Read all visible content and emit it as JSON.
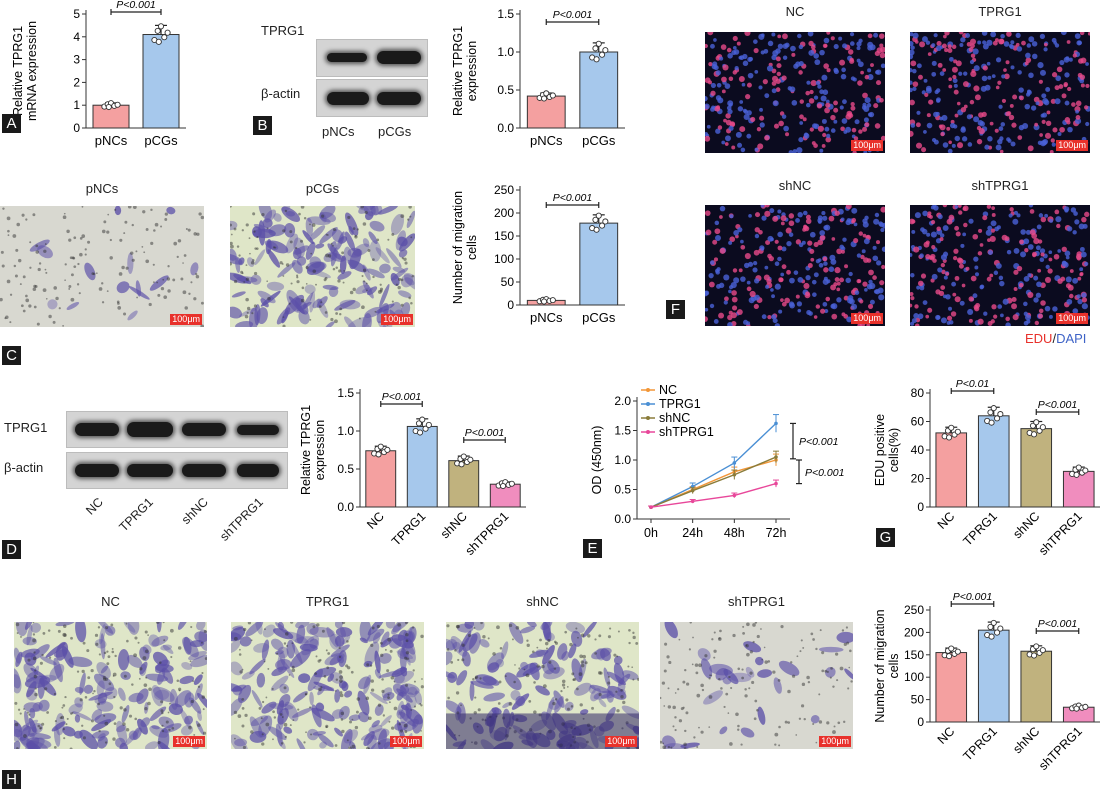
{
  "panel_letters": {
    "A": "A",
    "B": "B",
    "C": "C",
    "D": "D",
    "E": "E",
    "F": "F",
    "G": "G",
    "H": "H"
  },
  "scale_bar": "100μm",
  "panel_b": {
    "bands": [
      "TPRG1",
      "β-actin"
    ],
    "lanes": [
      "pNCs",
      "pCGs"
    ]
  },
  "panel_c": {
    "images": [
      "pNCs",
      "pCGs"
    ]
  },
  "panel_d": {
    "bands": [
      "TPRG1",
      "β-actin"
    ],
    "lanes": [
      "NC",
      "TPRG1",
      "shNC",
      "shTPRG1"
    ]
  },
  "panel_f": {
    "images": [
      "NC",
      "TPRG1",
      "shNC",
      "shTPRG1"
    ],
    "legend_edu": "EDU",
    "legend_sep": "/",
    "legend_dapi": "DAPI"
  },
  "panel_h": {
    "images": [
      "NC",
      "TPRG1",
      "shNC",
      "shTPRG1"
    ]
  },
  "colors": {
    "pink": "#f4a0a0",
    "blue": "#a6c8ec",
    "olive": "#c0b27e",
    "magenta": "#f08dbe",
    "orange": "#f29637",
    "line_blue": "#4a8fd4",
    "line_olive": "#8a7c3a",
    "line_pink": "#e8479a"
  },
  "chart_data": [
    {
      "id": "A",
      "type": "bar",
      "categories": [
        "pNCs",
        "pCGs"
      ],
      "values": [
        1.0,
        4.1
      ],
      "errors": [
        0.1,
        0.4
      ],
      "ylabel": "Relative TPRG1 mRNA expression",
      "ylim": [
        0,
        5
      ],
      "yticks": [
        0,
        1,
        2,
        3,
        4,
        5
      ],
      "annotations": [
        {
          "from": 0,
          "to": 1,
          "text": "P<0.001"
        }
      ]
    },
    {
      "id": "B",
      "type": "bar",
      "categories": [
        "pNCs",
        "pCGs"
      ],
      "values": [
        0.42,
        1.0
      ],
      "errors": [
        0.04,
        0.12
      ],
      "ylabel": "Relative TPRG1 expression",
      "ylim": [
        0,
        1.5
      ],
      "yticks": [
        0.0,
        0.5,
        1.0,
        1.5
      ],
      "annotations": [
        {
          "from": 0,
          "to": 1,
          "text": "P<0.001"
        }
      ]
    },
    {
      "id": "C",
      "type": "bar",
      "categories": [
        "pNCs",
        "pCGs"
      ],
      "values": [
        10,
        178
      ],
      "errors": [
        3,
        18
      ],
      "ylabel": "Number of migration cells",
      "ylim": [
        0,
        250
      ],
      "yticks": [
        0,
        50,
        100,
        150,
        200,
        250
      ],
      "annotations": [
        {
          "from": 0,
          "to": 1,
          "text": "P<0.001"
        }
      ]
    },
    {
      "id": "D",
      "type": "bar",
      "categories": [
        "NC",
        "TPRG1",
        "shNC",
        "shTPRG1"
      ],
      "values": [
        0.74,
        1.06,
        0.61,
        0.3
      ],
      "errors": [
        0.06,
        0.1,
        0.06,
        0.03
      ],
      "ylabel": "Relative TPRG1 expression",
      "ylim": [
        0,
        1.5
      ],
      "yticks": [
        0.0,
        0.5,
        1.0,
        1.5
      ],
      "annotations": [
        {
          "from": 0,
          "to": 1,
          "text": "P<0.001"
        },
        {
          "from": 2,
          "to": 3,
          "text": "P<0.001"
        }
      ]
    },
    {
      "id": "E",
      "type": "line",
      "x": [
        "0h",
        "24h",
        "48h",
        "72h"
      ],
      "series": [
        {
          "name": "NC",
          "values": [
            0.2,
            0.5,
            0.8,
            1.0
          ],
          "errors": [
            0.02,
            0.05,
            0.08,
            0.1
          ]
        },
        {
          "name": "TPRG1",
          "values": [
            0.2,
            0.55,
            0.95,
            1.62
          ],
          "errors": [
            0.02,
            0.06,
            0.1,
            0.15
          ]
        },
        {
          "name": "shNC",
          "values": [
            0.2,
            0.48,
            0.75,
            1.05
          ],
          "errors": [
            0.02,
            0.05,
            0.08,
            0.1
          ]
        },
        {
          "name": "shTPRG1",
          "values": [
            0.2,
            0.3,
            0.4,
            0.6
          ],
          "errors": [
            0.02,
            0.03,
            0.04,
            0.06
          ]
        }
      ],
      "ylabel": "OD (450nm)",
      "ylim": [
        0,
        2.0
      ],
      "yticks": [
        0.0,
        0.5,
        1.0,
        1.5,
        2.0
      ],
      "annotations": [
        {
          "text": "P<0.001"
        },
        {
          "text": "P<0.001"
        }
      ]
    },
    {
      "id": "G",
      "type": "bar",
      "categories": [
        "NC",
        "TPRG1",
        "shNC",
        "shTPRG1"
      ],
      "values": [
        52,
        64,
        55,
        25
      ],
      "errors": [
        4,
        6,
        5,
        3
      ],
      "ylabel": "EDU positive cells(%)",
      "ylim": [
        0,
        80
      ],
      "yticks": [
        0,
        20,
        40,
        60,
        80
      ],
      "annotations": [
        {
          "from": 0,
          "to": 1,
          "text": "P<0.01"
        },
        {
          "from": 2,
          "to": 3,
          "text": "P<0.001"
        }
      ]
    },
    {
      "id": "H",
      "type": "bar",
      "categories": [
        "NC",
        "TPRG1",
        "shNC",
        "shTPRG1"
      ],
      "values": [
        155,
        205,
        158,
        33
      ],
      "errors": [
        10,
        18,
        12,
        4
      ],
      "ylabel": "Number of migration cells",
      "ylim": [
        0,
        250
      ],
      "yticks": [
        0,
        50,
        100,
        150,
        200,
        250
      ],
      "annotations": [
        {
          "from": 0,
          "to": 1,
          "text": "P<0.001"
        },
        {
          "from": 2,
          "to": 3,
          "text": "P<0.001"
        }
      ]
    }
  ]
}
